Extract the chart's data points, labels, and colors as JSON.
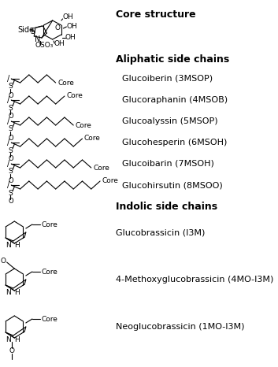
{
  "bg_color": "#ffffff",
  "title_fontsize": 9,
  "label_fontsize": 8,
  "core_structure_title": "Core structure",
  "aliphatic_title": "Aliphatic side chains",
  "indolic_title": "Indolic side chains",
  "aliphatic_entries": [
    {
      "label": "Glucoiberin (3MSOP)",
      "n_carbons": 3
    },
    {
      "label": "Glucoraphanin (4MSOB)",
      "n_carbons": 4
    },
    {
      "label": "Glucoalyssin (5MSOP)",
      "n_carbons": 5
    },
    {
      "label": "Glucohesperin (6MSOH)",
      "n_carbons": 6
    },
    {
      "label": "Glucoibarin (7MSOH)",
      "n_carbons": 7
    },
    {
      "label": "Glucohirsutin (8MSOO)",
      "n_carbons": 8
    }
  ],
  "indolic_entries": [
    {
      "label": "Glucobrassicin (I3M)"
    },
    {
      "label": "4-Methoxyglucobrassicin (4MO-I3M)"
    },
    {
      "label": "Neoglucobrassicin (1MO-I3M)"
    }
  ]
}
